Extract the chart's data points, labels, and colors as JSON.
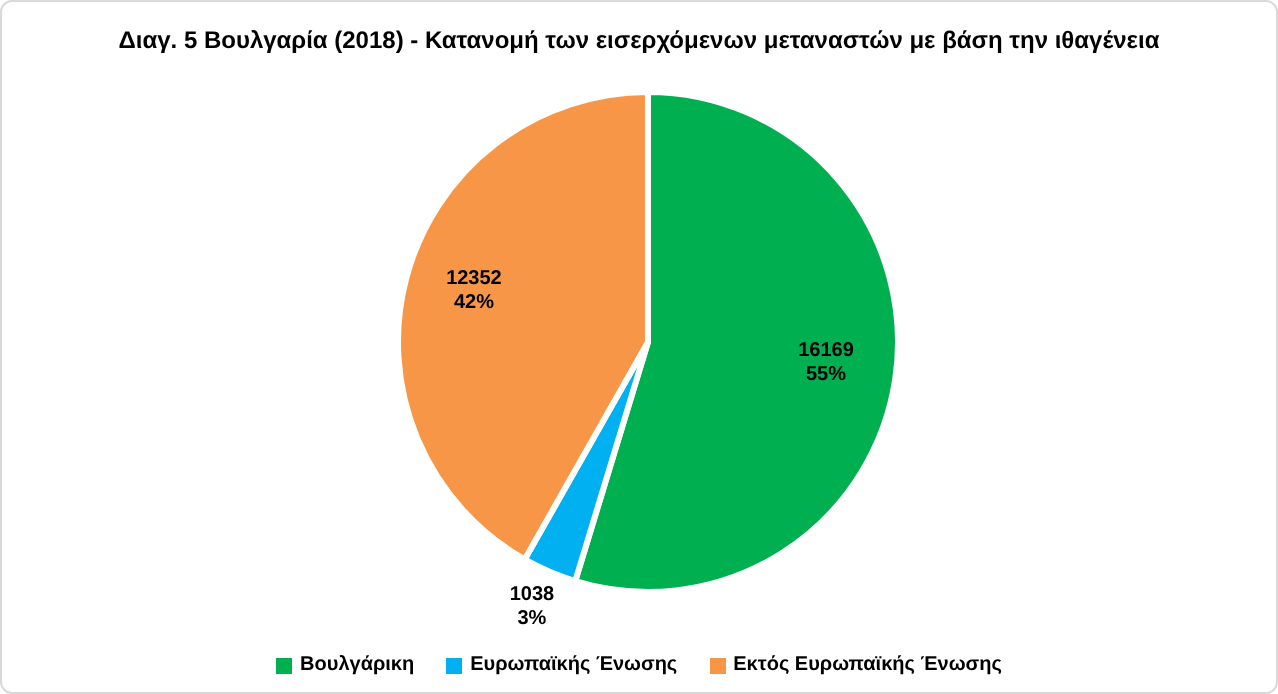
{
  "chart_data": {
    "type": "pie",
    "title": "Διαγ. 5  Βουλγαρία (2018) - Κατανομή των εισερχόμενων μεταναστών με βάση την ιθαγένεια",
    "categories": [
      "Βουλγάρικη",
      "Ευρωπαϊκής Ένωσης",
      "Εκτός Ευρωπαϊκής Ένωσης"
    ],
    "values": [
      16169,
      1038,
      12352
    ],
    "colors": [
      "#00b050",
      "#00b0f0",
      "#f79646"
    ],
    "value_labels": [
      "16169\n55%",
      "1038\n3%",
      "12352\n42%"
    ],
    "legend": "bottom"
  }
}
